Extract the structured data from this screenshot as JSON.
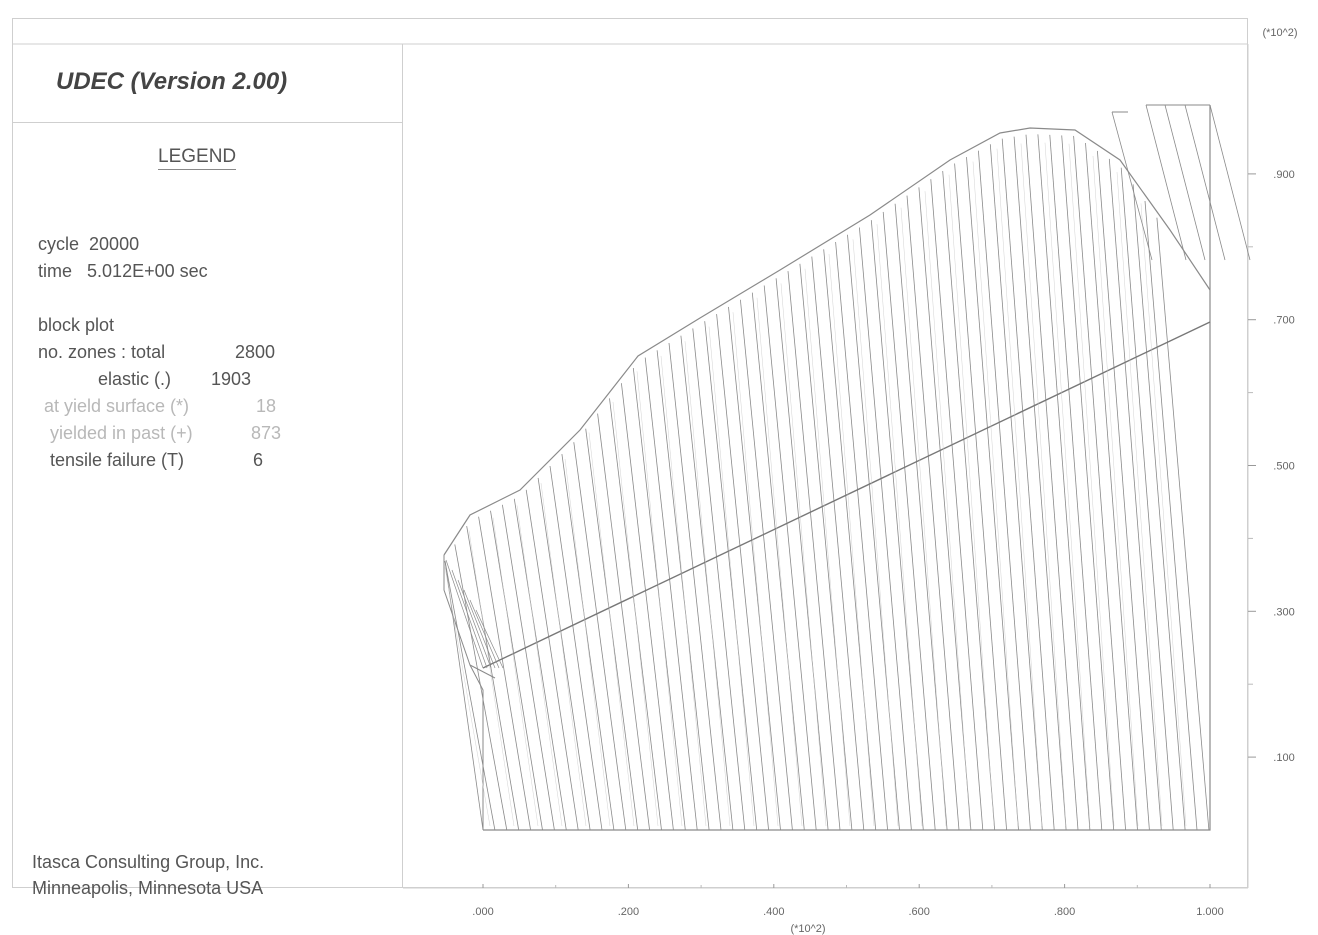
{
  "header": {
    "title": "UDEC (Version 2.00)",
    "legend_heading": "LEGEND"
  },
  "legend": {
    "cycle_label": "cycle",
    "cycle_value": "20000",
    "time_label": "time",
    "time_value": "5.012E+00 sec",
    "plot_type": "block plot",
    "zones_total_label": "no. zones : total",
    "zones_total_value": "2800",
    "elastic_label": "elastic (.)",
    "elastic_value": "1903",
    "yield_surface_label": "at yield surface (*)",
    "yield_surface_value": "18",
    "yielded_past_label": "yielded in past (+)",
    "yielded_past_value": "873",
    "tensile_label": "tensile failure (T)",
    "tensile_value": "6"
  },
  "credit": {
    "line1": "Itasca Consulting Group, Inc.",
    "line2": "Minneapolis, Minnesota USA"
  },
  "axes": {
    "x_scale": "(*10^2)",
    "y_scale": "(*10^2)",
    "x_ticks": [
      ".000",
      ".200",
      ".400",
      ".600",
      ".800",
      "1.000"
    ],
    "y_ticks": [
      ".100",
      ".300",
      ".500",
      ".700",
      ".900"
    ],
    "x_tick_values": [
      0,
      0.2,
      0.4,
      0.6,
      0.8,
      1.0
    ],
    "y_tick_values": [
      0.1,
      0.3,
      0.5,
      0.7,
      0.9
    ]
  },
  "colors": {
    "block_lines": "#8a8a8a",
    "frame": "#cfcfcf",
    "text": "#555555",
    "faint_text": "#b8b8b8"
  }
}
